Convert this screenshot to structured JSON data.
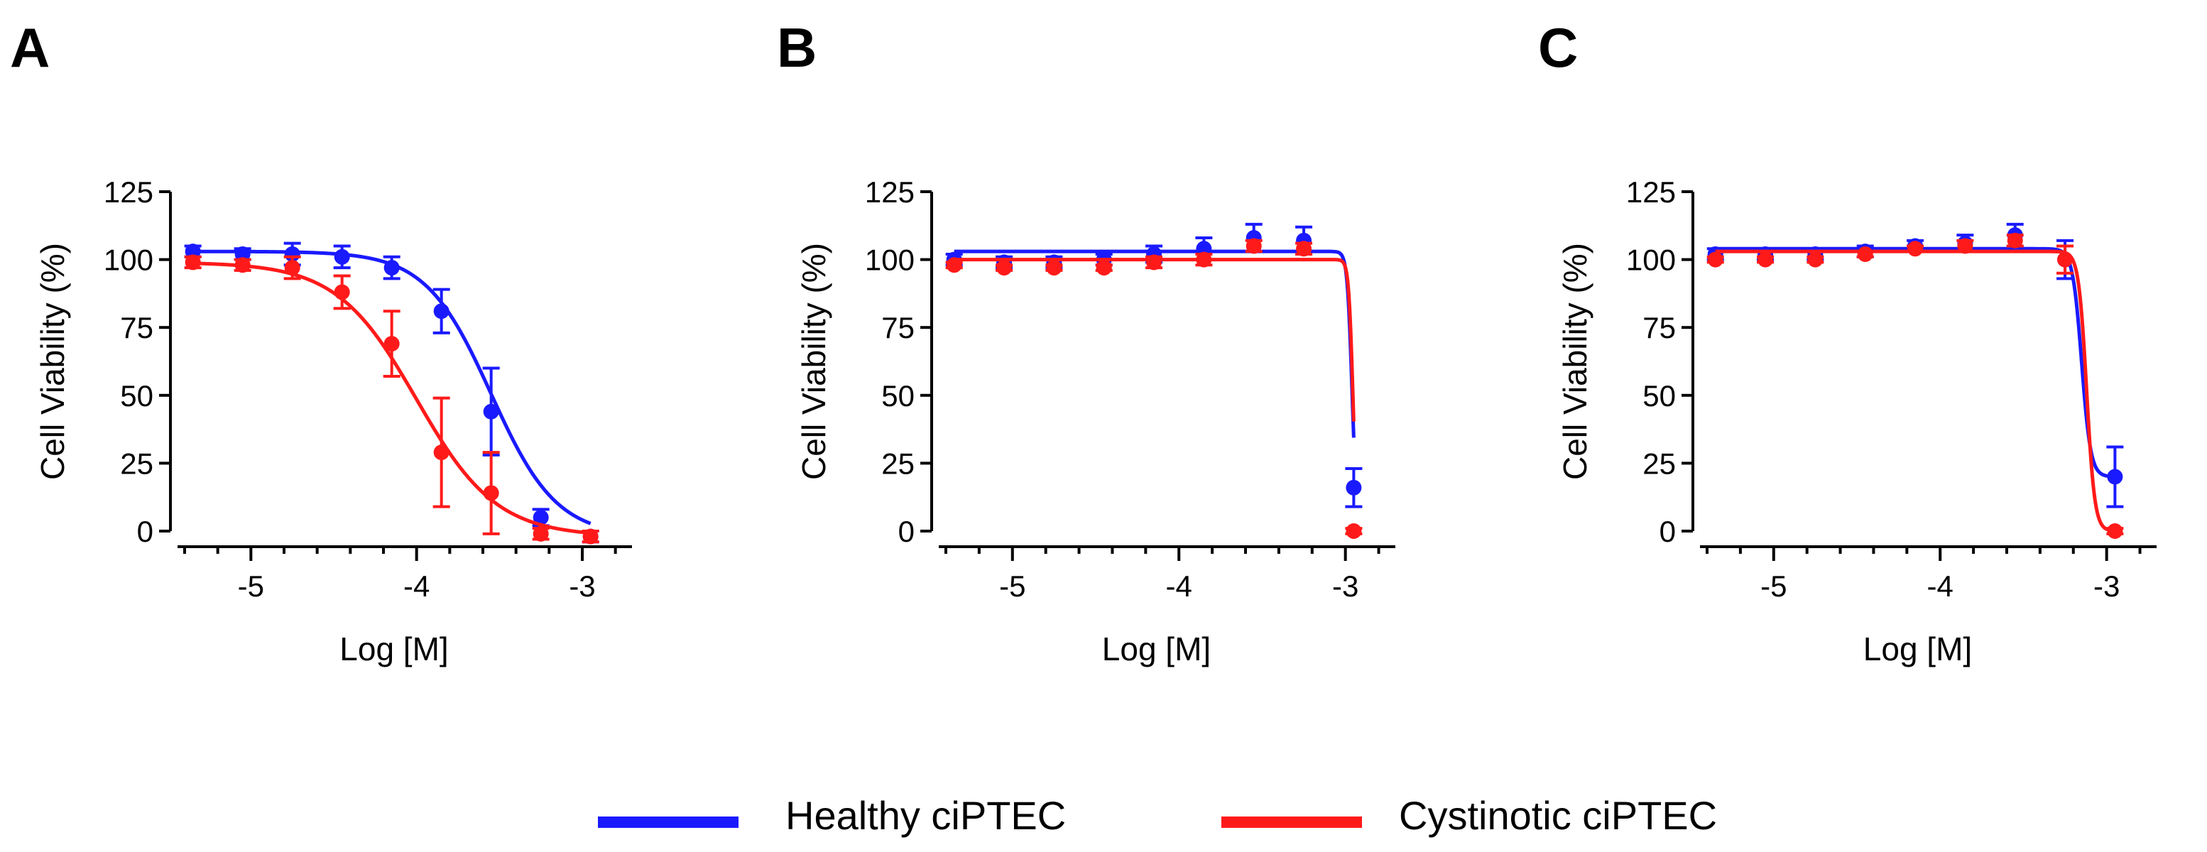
{
  "figure": {
    "panels": [
      "A",
      "B",
      "C"
    ],
    "legend": [
      {
        "label": "Healthy ciPTEC",
        "color": "#1a1aff"
      },
      {
        "label": "Cystinotic ciPTEC",
        "color": "#ff1a1a"
      }
    ]
  },
  "chart_data": [
    {
      "panel": "A",
      "type": "scatter",
      "xlabel": "Log [M]",
      "ylabel": "Cell Viability (%)",
      "xlim": [
        -5.4,
        -2.7
      ],
      "ylim": [
        0,
        125
      ],
      "xticks": [
        -5,
        -4,
        -3
      ],
      "xtick_labels": [
        "-5",
        "-4",
        "-3"
      ],
      "yticks": [
        0,
        25,
        50,
        75,
        100,
        125
      ],
      "ytick_labels": [
        "0",
        "25",
        "50",
        "75",
        "100",
        "125"
      ],
      "series": [
        {
          "name": "Healthy ciPTEC",
          "color": "#1a1aff",
          "marker": "circle",
          "x": [
            -5.35,
            -5.05,
            -4.75,
            -4.45,
            -4.15,
            -3.85,
            -3.55,
            -3.25,
            -2.95
          ],
          "y": [
            103,
            102,
            102,
            101,
            97,
            81,
            44,
            5,
            -2
          ],
          "err": [
            2,
            2,
            4,
            4,
            4,
            8,
            16,
            3,
            2
          ],
          "fit": {
            "top": 103,
            "bottom": -2,
            "logec50": -3.55,
            "hill": 2.2
          }
        },
        {
          "name": "Cystinotic ciPTEC",
          "color": "#ff1a1a",
          "marker": "circle",
          "x": [
            -5.35,
            -5.05,
            -4.75,
            -4.45,
            -4.15,
            -3.85,
            -3.55,
            -3.25,
            -2.95
          ],
          "y": [
            99,
            98,
            97,
            88,
            69,
            29,
            14,
            -1,
            -2
          ],
          "err": [
            2,
            2,
            4,
            6,
            12,
            20,
            15,
            2,
            2
          ],
          "fit": {
            "top": 99,
            "bottom": -2,
            "logec50": -4.0,
            "hill": 1.8
          }
        }
      ]
    },
    {
      "panel": "B",
      "type": "scatter",
      "xlabel": "Log [M]",
      "ylabel": "Cell Viability (%)",
      "xlim": [
        -5.4,
        -2.7
      ],
      "ylim": [
        0,
        125
      ],
      "xticks": [
        -5,
        -4,
        -3
      ],
      "xtick_labels": [
        "-5",
        "-4",
        "-3"
      ],
      "yticks": [
        0,
        25,
        50,
        75,
        100,
        125
      ],
      "ytick_labels": [
        "0",
        "25",
        "50",
        "75",
        "100",
        "125"
      ],
      "series": [
        {
          "name": "Healthy ciPTEC",
          "color": "#1a1aff",
          "marker": "circle",
          "x": [
            -5.35,
            -5.05,
            -4.75,
            -4.45,
            -4.15,
            -3.85,
            -3.55,
            -3.25,
            -2.95
          ],
          "y": [
            100,
            99,
            99,
            100,
            102,
            104,
            108,
            107,
            16
          ],
          "err": [
            2,
            2,
            2,
            2,
            3,
            4,
            5,
            5,
            7
          ],
          "fit": {
            "top": 103,
            "bottom": 0,
            "logec50": -2.96,
            "hill": 30
          }
        },
        {
          "name": "Cystinotic ciPTEC",
          "color": "#ff1a1a",
          "marker": "circle",
          "x": [
            -5.35,
            -5.05,
            -4.75,
            -4.45,
            -4.15,
            -3.85,
            -3.55,
            -3.25,
            -2.95
          ],
          "y": [
            98,
            97,
            97,
            97,
            99,
            100,
            105,
            104,
            0
          ],
          "err": [
            1,
            1,
            1,
            1,
            2,
            2,
            2,
            2,
            1
          ],
          "fit": {
            "top": 100,
            "bottom": 0,
            "logec50": -2.955,
            "hill": 34
          }
        }
      ]
    },
    {
      "panel": "C",
      "type": "scatter",
      "xlabel": "Log [M]",
      "ylabel": "Cell Viability (%)",
      "xlim": [
        -5.4,
        -2.7
      ],
      "ylim": [
        0,
        125
      ],
      "xticks": [
        -5,
        -4,
        -3
      ],
      "xtick_labels": [
        "-5",
        "-4",
        "-3"
      ],
      "yticks": [
        0,
        25,
        50,
        75,
        100,
        125
      ],
      "ytick_labels": [
        "0",
        "25",
        "50",
        "75",
        "100",
        "125"
      ],
      "series": [
        {
          "name": "Healthy ciPTEC",
          "color": "#1a1aff",
          "marker": "circle",
          "x": [
            -5.35,
            -5.05,
            -4.75,
            -4.45,
            -4.15,
            -3.85,
            -3.55,
            -3.25,
            -2.95
          ],
          "y": [
            102,
            102,
            102,
            103,
            105,
            106,
            109,
            100,
            20
          ],
          "err": [
            2,
            2,
            2,
            2,
            2,
            3,
            4,
            7,
            11
          ],
          "fit": {
            "top": 104,
            "bottom": 20,
            "logec50": -3.15,
            "hill": 16
          }
        },
        {
          "name": "Cystinotic ciPTEC",
          "color": "#ff1a1a",
          "marker": "circle",
          "x": [
            -5.35,
            -5.05,
            -4.75,
            -4.45,
            -4.15,
            -3.85,
            -3.55,
            -3.25,
            -2.95
          ],
          "y": [
            100,
            100,
            100,
            102,
            104,
            105,
            107,
            100,
            0
          ],
          "err": [
            1,
            1,
            1,
            1,
            1,
            2,
            2,
            5,
            1
          ],
          "fit": {
            "top": 103,
            "bottom": 0,
            "logec50": -3.12,
            "hill": 18
          }
        }
      ]
    }
  ]
}
